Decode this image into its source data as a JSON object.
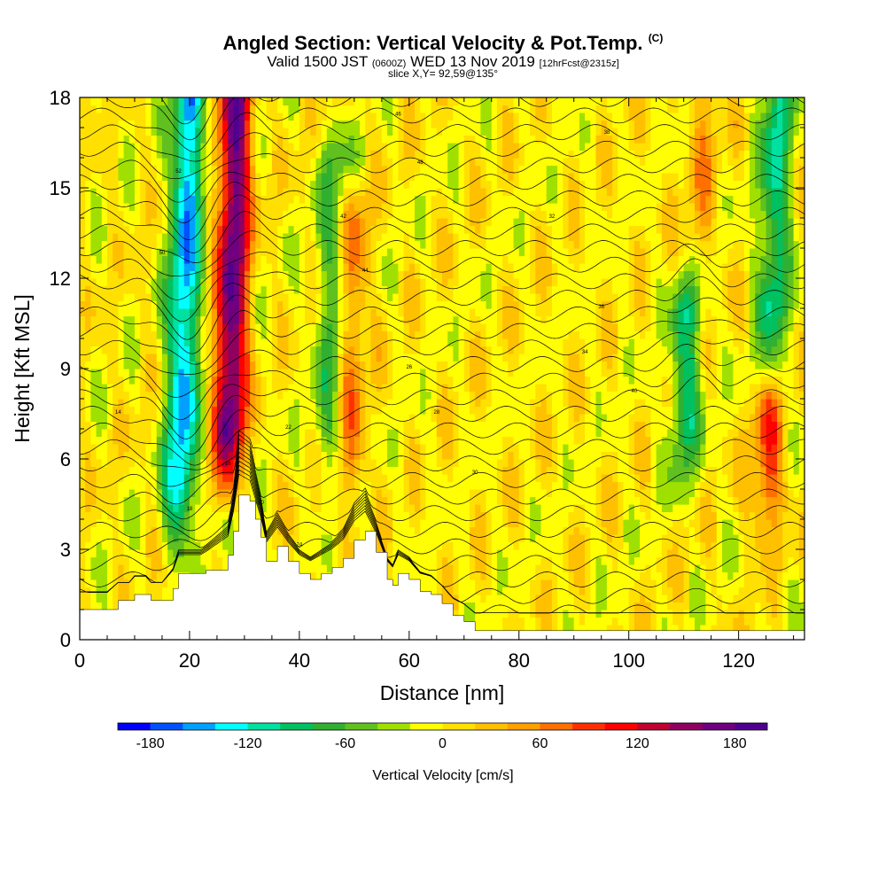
{
  "header": {
    "title": "Angled Section: Vertical Velocity & Pot.Temp.",
    "title_mark": "(C)",
    "subtitle_main": "Valid 1500 JST",
    "subtitle_utc": "(0600Z)",
    "subtitle_date": "WED 13 Nov 2019",
    "subtitle_fcst": "[12hrFcst@2315z]",
    "slice": "slice X,Y= 92,59@135°"
  },
  "chart_data": {
    "type": "heatmap",
    "xlabel": "Distance [nm]",
    "ylabel": "Height [Kft MSL]",
    "xlim": [
      0,
      132
    ],
    "ylim": [
      0,
      18
    ],
    "x_ticks": [
      "0",
      "20",
      "40",
      "60",
      "80",
      "100",
      "120"
    ],
    "y_ticks": [
      "0",
      "3",
      "6",
      "9",
      "12",
      "15",
      "18"
    ],
    "colorbar": {
      "label": "Vertical Velocity [cm/s]",
      "range": [
        -200,
        200
      ],
      "step": 20,
      "tick_values": [
        -180,
        -120,
        -60,
        0,
        60,
        120,
        180
      ],
      "tick_labels": [
        "-180",
        "-120",
        "-60",
        "0",
        "60",
        "120",
        "180"
      ],
      "colors": [
        "#0000ff",
        "#0050ff",
        "#00a0ff",
        "#00ffff",
        "#00e0a0",
        "#00c060",
        "#30b030",
        "#60c020",
        "#a0e000",
        "#ffff00",
        "#ffe000",
        "#ffc000",
        "#ffa000",
        "#ff7000",
        "#ff3000",
        "#ff0000",
        "#c00030",
        "#900060",
        "#700080",
        "#500090"
      ]
    },
    "updrafts": [
      {
        "x": 27,
        "y0": 5,
        "y1": 18,
        "value": 180
      },
      {
        "x": 49,
        "y0": 4,
        "y1": 14,
        "value": 60
      },
      {
        "x": 125,
        "y0": 3,
        "y1": 7,
        "value": 90
      },
      {
        "x": 113,
        "y0": 12,
        "y1": 18,
        "value": 40
      }
    ],
    "downdrafts": [
      {
        "x": 18,
        "y0": 3,
        "y1": 18,
        "value": -150
      },
      {
        "x": 45,
        "y0": 5,
        "y1": 16,
        "value": -60
      },
      {
        "x": 110,
        "y0": 5,
        "y1": 11,
        "value": -90
      },
      {
        "x": 126,
        "y0": 9,
        "y1": 18,
        "value": -100
      }
    ],
    "terrain": [
      [
        0,
        1
      ],
      [
        5,
        1
      ],
      [
        7,
        1.3
      ],
      [
        9,
        1.3
      ],
      [
        10,
        1.5
      ],
      [
        12,
        1.5
      ],
      [
        13,
        1.3
      ],
      [
        15,
        1.3
      ],
      [
        17,
        1.7
      ],
      [
        18,
        2.2
      ],
      [
        22,
        2.2
      ],
      [
        23,
        2.3
      ],
      [
        27,
        2.8
      ],
      [
        28,
        3.6
      ],
      [
        29,
        4.8
      ],
      [
        31,
        4.6
      ],
      [
        32,
        4.0
      ],
      [
        33,
        3.4
      ],
      [
        34,
        2.6
      ],
      [
        36,
        3.1
      ],
      [
        38,
        2.6
      ],
      [
        40,
        2.2
      ],
      [
        42,
        2.0
      ],
      [
        44,
        2.2
      ],
      [
        46,
        2.4
      ],
      [
        48,
        2.7
      ],
      [
        50,
        3.3
      ],
      [
        52,
        3.6
      ],
      [
        54,
        2.9
      ],
      [
        56,
        2.0
      ],
      [
        57,
        1.8
      ],
      [
        58,
        2.2
      ],
      [
        60,
        2.0
      ],
      [
        62,
        1.6
      ],
      [
        64,
        1.5
      ],
      [
        66,
        1.2
      ],
      [
        68,
        0.8
      ],
      [
        70,
        0.6
      ],
      [
        72,
        0.3
      ],
      [
        80,
        0.3
      ],
      [
        100,
        0.3
      ],
      [
        132,
        0.3
      ]
    ],
    "isentropes": {
      "start": 12,
      "step": 2,
      "count": 34,
      "label_values": [
        "14",
        "16",
        "18",
        "20",
        "22",
        "24",
        "26",
        "28",
        "30",
        "32",
        "34",
        "36",
        "38",
        "40",
        "42",
        "44",
        "46",
        "48",
        "50",
        "52"
      ]
    }
  }
}
